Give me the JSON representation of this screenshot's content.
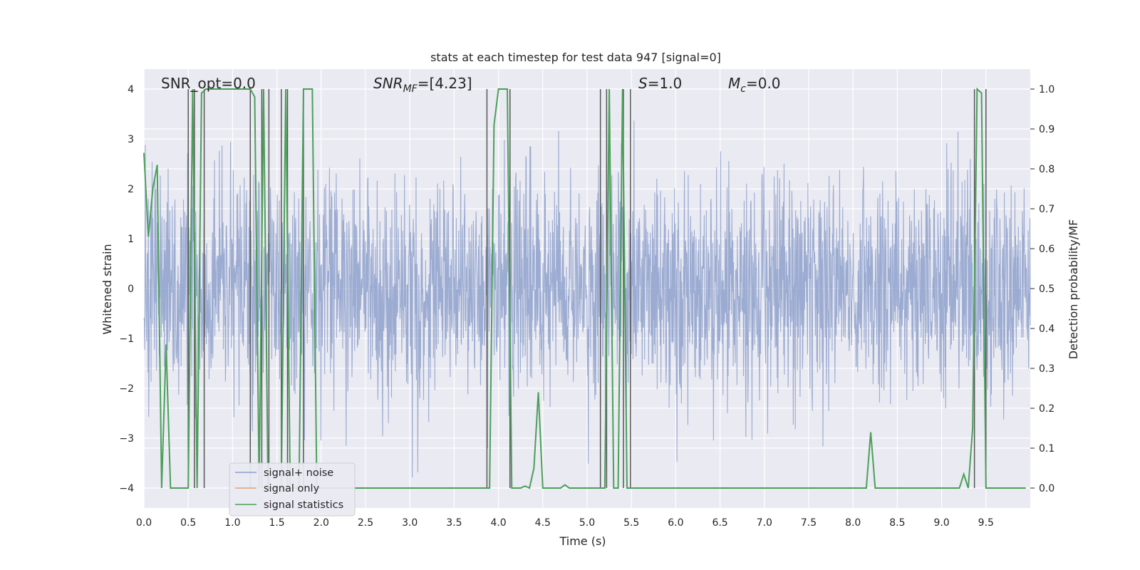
{
  "chart_data": {
    "type": "line",
    "title": "stats at each timestep for test data 947 [signal=0]",
    "xlabel": "Time (s)",
    "ylabel": "Whitened strain",
    "y2label": "Detection probability/MF",
    "xlim": [
      0,
      10
    ],
    "ylim": [
      -4.4,
      4.4
    ],
    "y2lim": [
      -0.05,
      1.05
    ],
    "x_ticks": [
      "0.0",
      "0.5",
      "1.0",
      "1.5",
      "2.0",
      "2.5",
      "3.0",
      "3.5",
      "4.0",
      "4.5",
      "5.0",
      "5.5",
      "6.0",
      "6.5",
      "7.0",
      "7.5",
      "8.0",
      "8.5",
      "9.0",
      "9.5"
    ],
    "y_ticks": [
      "4",
      "3",
      "2",
      "1",
      "0",
      "−1",
      "−2",
      "−3",
      "−4"
    ],
    "y2_ticks": [
      "1.0",
      "0.9",
      "0.8",
      "0.7",
      "0.6",
      "0.5",
      "0.4",
      "0.3",
      "0.2",
      "0.1",
      "0.0"
    ],
    "grid": true,
    "legend_position": "lower-left",
    "annotations": {
      "snr_opt": "SNR_opt=0.0",
      "snr_mf_sym": "SNR",
      "snr_mf_sub": "MF",
      "snr_mf_rest": "=[4.23]",
      "s_sym": "S",
      "s_rest": "=1.0",
      "mc_sym": "M",
      "mc_sub": "c",
      "mc_rest": "=0.0"
    },
    "series": [
      {
        "name": "signal+ noise",
        "color": "#8da0cb",
        "note_values": "whitened strain noise, roughly Gaussian with std ~1.1, peaks reaching ~±3.8, sampled across 0–10 s"
      },
      {
        "name": "signal only",
        "color": "#e8a07e",
        "values": []
      },
      {
        "name": "signal statistics",
        "color": "#4c9f5a",
        "x": [
          0.0,
          0.05,
          0.1,
          0.15,
          0.2,
          0.25,
          0.3,
          0.35,
          0.4,
          0.45,
          0.5,
          0.55,
          0.6,
          0.65,
          0.7,
          0.75,
          0.8,
          0.85,
          0.9,
          0.95,
          1.0,
          1.05,
          1.1,
          1.15,
          1.2,
          1.25,
          1.3,
          1.35,
          1.4,
          1.45,
          1.5,
          1.55,
          1.6,
          1.65,
          1.7,
          1.75,
          1.8,
          1.85,
          1.9,
          1.95,
          2.0,
          3.85,
          3.9,
          3.95,
          4.0,
          4.05,
          4.1,
          4.15,
          4.2,
          4.25,
          4.3,
          4.35,
          4.4,
          4.45,
          4.5,
          4.55,
          4.6,
          4.65,
          4.7,
          4.75,
          4.8,
          4.85,
          4.9,
          5.15,
          5.2,
          5.25,
          5.3,
          5.35,
          5.4,
          5.45,
          5.5,
          5.55,
          5.6,
          8.1,
          8.15,
          8.2,
          8.25,
          8.3,
          9.15,
          9.2,
          9.25,
          9.3,
          9.35,
          9.4,
          9.45,
          9.5,
          9.55,
          9.6,
          9.95
        ],
        "values": [
          0.84,
          0.63,
          0.75,
          0.81,
          0.0,
          0.36,
          0.0,
          0.0,
          0.0,
          0.0,
          0.0,
          1.0,
          0.0,
          0.99,
          1.0,
          1.0,
          1.0,
          1.0,
          1.0,
          1.0,
          1.0,
          1.0,
          1.0,
          1.0,
          1.0,
          0.98,
          0.0,
          1.0,
          0.0,
          0.0,
          0.0,
          0.0,
          1.0,
          0.0,
          0.0,
          0.0,
          1.0,
          1.0,
          1.0,
          0.0,
          0.0,
          0.0,
          0.0,
          0.91,
          1.0,
          1.0,
          1.0,
          0.0,
          0.0,
          0.0,
          0.005,
          0.0,
          0.05,
          0.24,
          0.0,
          0.0,
          0.0,
          0.0,
          0.0,
          0.008,
          0.0,
          0.0,
          0.0,
          0.0,
          0.0,
          1.0,
          0.0,
          0.0,
          1.0,
          0.0,
          0.0,
          0.0,
          0.0,
          0.0,
          0.0,
          0.14,
          0.0,
          0.0,
          0.0,
          0.0,
          0.035,
          0.0,
          0.15,
          1.0,
          0.99,
          0.0,
          0.0,
          0.0,
          0.0
        ]
      }
    ],
    "vertical_markers_x": [
      0.5,
      0.57,
      0.68,
      1.2,
      1.33,
      1.41,
      1.55,
      1.62,
      1.8,
      3.87,
      4.13,
      5.15,
      5.22,
      5.41,
      5.49,
      9.37,
      9.5
    ]
  }
}
